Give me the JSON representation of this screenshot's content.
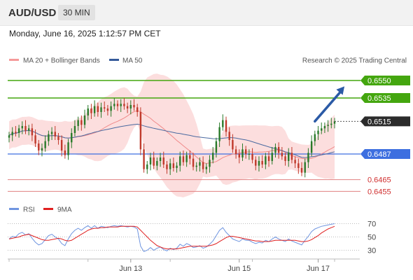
{
  "header": {
    "symbol": "AUD/USD",
    "timeframe": "30 MIN"
  },
  "datetime": "Monday, June 16, 2025 1:12:57 PM CET",
  "watermark": "Research © 2025 Trading Central",
  "colors": {
    "up": "#2a7a2a",
    "down": "#c0392b",
    "green_level": "#44a60f",
    "blue_level": "#3d6fe0",
    "red_level": "#e08080",
    "band_fill": "#fbd3d3",
    "ma20": "#f08a8a",
    "ma50": "#4a6aa0",
    "arrow": "#2b5aa6",
    "rsi": "#6f95e0",
    "rsi_ma": "#e02020"
  },
  "chart_data": [
    {
      "type": "candlestick",
      "title": "AUD/USD",
      "legend": [
        {
          "name": "MA 20 + Bollinger Bands",
          "color": "#f59a9a"
        },
        {
          "name": "MA 50",
          "color": "#355a9a"
        }
      ],
      "legend_placement": "top-left",
      "ylim": [
        0.6448,
        0.6562
      ],
      "x_ticks": [
        {
          "label": "Jun 13",
          "index": 37
        },
        {
          "label": "Jun 15",
          "index": 70
        },
        {
          "label": "Jun 17",
          "index": 94
        }
      ],
      "current_price": {
        "label": "0.6515",
        "value": 0.6515
      },
      "levels": [
        {
          "label": "0.6550",
          "value": 0.655,
          "kind": "resistance"
        },
        {
          "label": "0.6535",
          "value": 0.6535,
          "kind": "resistance"
        },
        {
          "label": "0.6487",
          "value": 0.6487,
          "kind": "pivot"
        },
        {
          "label": "0.6465",
          "value": 0.6465,
          "kind": "support"
        },
        {
          "label": "0.6455",
          "value": 0.6455,
          "kind": "support"
        }
      ],
      "forecast_arrow": {
        "from_index": 93,
        "from_value": 0.6515,
        "to_index": 102,
        "to_value": 0.6545
      },
      "closes": [
        0.6503,
        0.6506,
        0.6505,
        0.6509,
        0.6511,
        0.6507,
        0.6509,
        0.6503,
        0.6496,
        0.649,
        0.6492,
        0.6498,
        0.6504,
        0.6506,
        0.6502,
        0.6499,
        0.649,
        0.6486,
        0.6497,
        0.6505,
        0.6511,
        0.6516,
        0.6512,
        0.652,
        0.6526,
        0.6522,
        0.6528,
        0.6523,
        0.6527,
        0.6526,
        0.6524,
        0.6528,
        0.653,
        0.6528,
        0.653,
        0.6528,
        0.6526,
        0.6529,
        0.6527,
        0.6523,
        0.6491,
        0.6474,
        0.6478,
        0.6484,
        0.6477,
        0.6481,
        0.6484,
        0.6478,
        0.6474,
        0.6479,
        0.6475,
        0.6477,
        0.6485,
        0.648,
        0.6486,
        0.6483,
        0.6476,
        0.6477,
        0.648,
        0.6474,
        0.6476,
        0.6482,
        0.6488,
        0.6498,
        0.651,
        0.6516,
        0.6506,
        0.6499,
        0.6491,
        0.6487,
        0.6484,
        0.6491,
        0.6487,
        0.6487,
        0.6482,
        0.6477,
        0.6481,
        0.6478,
        0.6485,
        0.6481,
        0.6488,
        0.6493,
        0.6488,
        0.6485,
        0.6481,
        0.6488,
        0.6482,
        0.6479,
        0.6475,
        0.6471,
        0.648,
        0.6488,
        0.6498,
        0.6504,
        0.6507,
        0.6509,
        0.6511,
        0.6512,
        0.6513,
        0.6515
      ]
    },
    {
      "type": "line",
      "legend": [
        {
          "name": "RSI",
          "color": "#6f95e0"
        },
        {
          "name": "9MA",
          "color": "#e02020"
        }
      ],
      "ylim": [
        20,
        80
      ],
      "y_ticks": [
        {
          "label": "70",
          "value": 70
        },
        {
          "label": "50",
          "value": 50
        },
        {
          "label": "30",
          "value": 30
        }
      ],
      "rsi": [
        47,
        51,
        50,
        55,
        57,
        53,
        55,
        48,
        42,
        38,
        40,
        46,
        52,
        54,
        50,
        47,
        40,
        37,
        47,
        55,
        60,
        63,
        60,
        64,
        67,
        63,
        67,
        63,
        66,
        65,
        64,
        66,
        67,
        66,
        67,
        66,
        65,
        66,
        65,
        62,
        36,
        28,
        30,
        34,
        30,
        33,
        35,
        31,
        29,
        33,
        31,
        33,
        39,
        36,
        40,
        38,
        34,
        35,
        37,
        33,
        35,
        39,
        44,
        52,
        60,
        64,
        57,
        52,
        47,
        45,
        43,
        47,
        45,
        45,
        42,
        40,
        42,
        41,
        45,
        43,
        47,
        50,
        47,
        45,
        43,
        47,
        44,
        42,
        40,
        38,
        45,
        51,
        58,
        62,
        64,
        66,
        67,
        68,
        69,
        70
      ],
      "rsi_ma": [
        47,
        48,
        49,
        50,
        52,
        53,
        54,
        52,
        50,
        48,
        46,
        45,
        45,
        46,
        47,
        48,
        47,
        45,
        44,
        45,
        48,
        51,
        54,
        57,
        60,
        62,
        63,
        63,
        64,
        64,
        65,
        65,
        65,
        65,
        66,
        66,
        66,
        66,
        66,
        65,
        60,
        55,
        50,
        45,
        41,
        37,
        35,
        33,
        32,
        32,
        32,
        32,
        33,
        34,
        35,
        36,
        36,
        36,
        36,
        36,
        36,
        37,
        38,
        40,
        43,
        46,
        49,
        51,
        51,
        50,
        49,
        48,
        47,
        46,
        45,
        44,
        44,
        43,
        43,
        43,
        44,
        45,
        45,
        45,
        45,
        45,
        45,
        45,
        44,
        43,
        43,
        44,
        46,
        49,
        52,
        56,
        59,
        62,
        64,
        66
      ]
    }
  ]
}
